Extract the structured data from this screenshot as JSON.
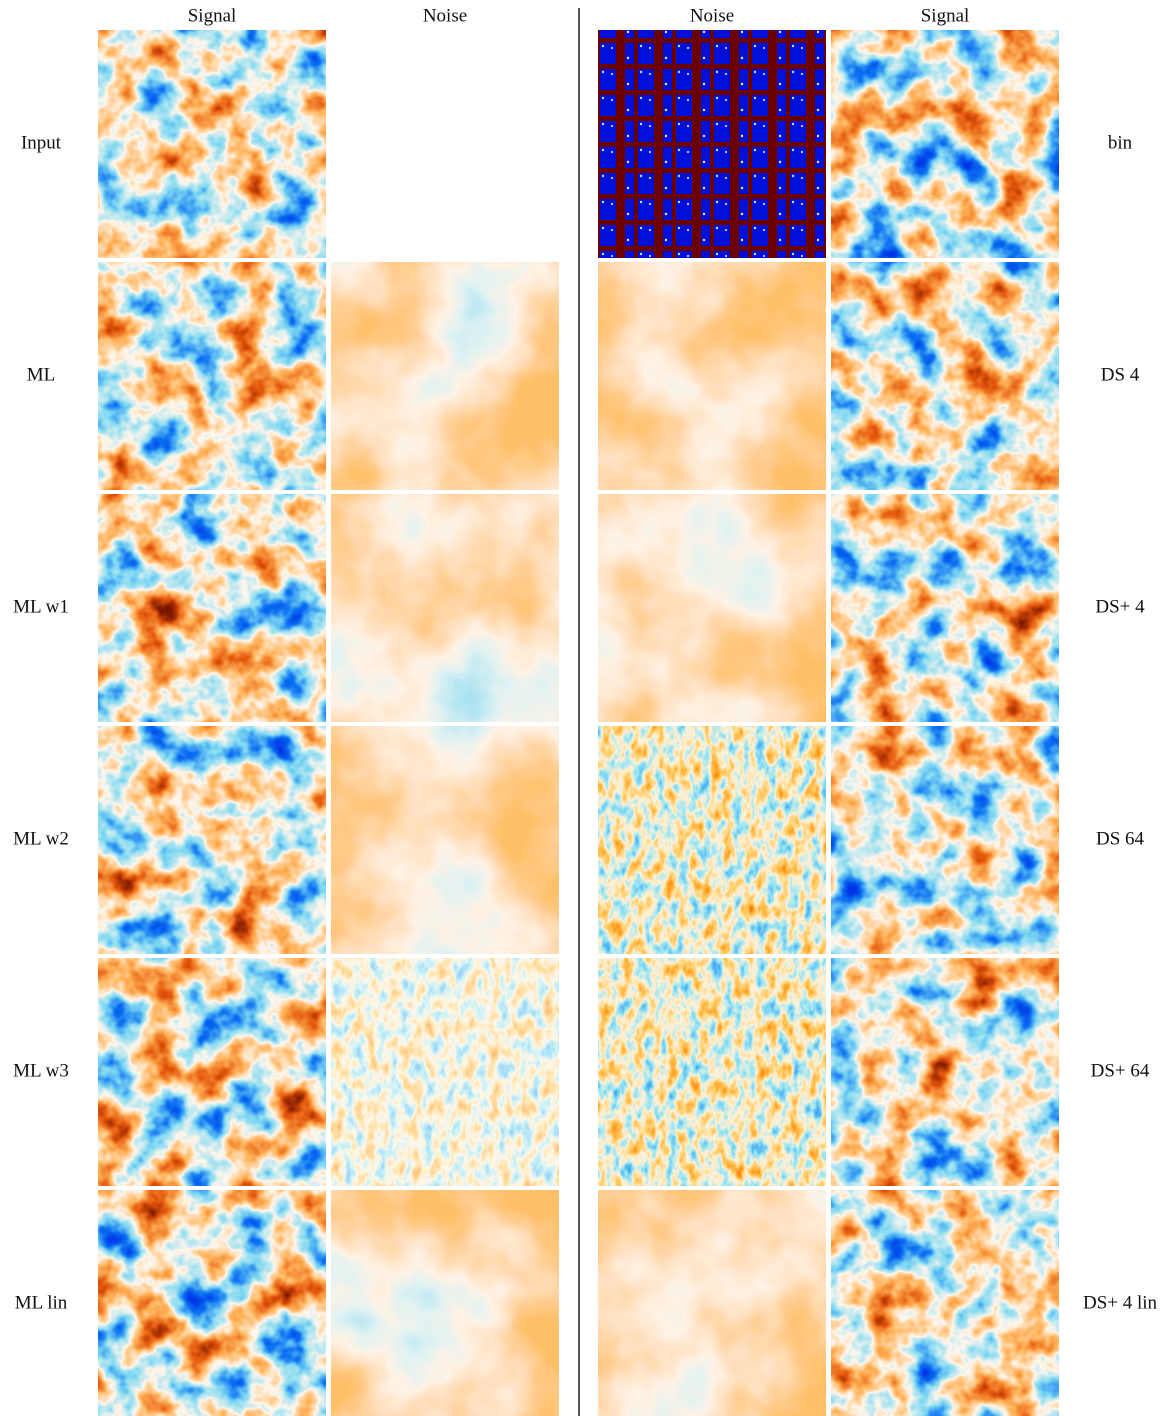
{
  "left": {
    "headers": [
      "Signal",
      "Noise"
    ],
    "rows": [
      "Input",
      "ML",
      "ML w1",
      "ML w2",
      "ML w3",
      "ML lin"
    ]
  },
  "right": {
    "headers": [
      "Noise",
      "Signal"
    ],
    "rows": [
      "bin",
      "DS 4",
      "DS+ 4",
      "DS 64",
      "DS+ 64",
      "DS+ 4 lin"
    ]
  }
}
